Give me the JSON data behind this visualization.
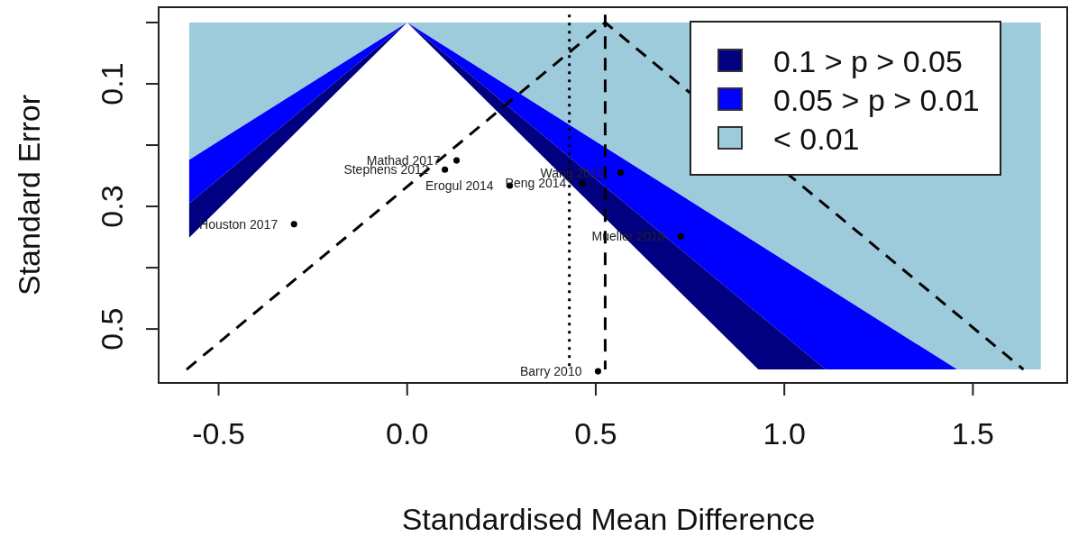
{
  "chart_data": {
    "type": "scatter",
    "xlabel": "Standardised Mean Difference",
    "ylabel": "Standard Error",
    "xlim": [
      -0.659,
      1.75
    ],
    "ylim": [
      0.588,
      -0.025
    ],
    "xticks": [
      -0.5,
      {
        "value": 0,
        "label": "0.0"
      },
      0.5,
      {
        "value": 1,
        "label": "1.0"
      },
      1.5
    ],
    "yticks": [
      {
        "value": 0,
        "label": null
      },
      0.1,
      {
        "value": 0.2,
        "label": null
      },
      0.3,
      {
        "value": 0.4,
        "label": null
      },
      0.5
    ],
    "legend": "top right",
    "series": [
      {
        "type": "area",
        "name": "< 0.01",
        "color": "#9ecbdb",
        "x": [
          -0.578,
          0,
          -0.578,
          null,
          0,
          1.68,
          1.68,
          1.458
        ],
        "values": [
          0,
          0,
          0.224,
          null,
          0,
          0,
          0.566,
          0.566
        ]
      },
      {
        "type": "area",
        "name": "0.05 > p > 0.01",
        "color": "#0000ff",
        "x": [
          0,
          -0.578,
          -0.578,
          null,
          0,
          1.458,
          1.109
        ],
        "values": [
          0,
          0.224,
          0.295,
          null,
          0,
          0.566,
          0.566
        ]
      },
      {
        "type": "area",
        "name": "0.1 > p > 0.05",
        "color": "#000080",
        "x": [
          0,
          -0.578,
          -0.578,
          null,
          0,
          1.109,
          0.931
        ],
        "values": [
          0,
          0.295,
          0.351,
          null,
          0,
          0.566,
          0.566
        ]
      },
      {
        "type": "line",
        "color": "#000000",
        "line_style": "dashed",
        "x": [
          -0.585,
          0.525,
          1.634
        ],
        "values": [
          0.566,
          0,
          0.566
        ]
      },
      {
        "color": "#000000",
        "marker": "circle",
        "x": [
          -0.3,
          0.131,
          0.1,
          0.272,
          0.465,
          0.566,
          0.726,
          0.506
        ],
        "values": [
          0.329,
          0.225,
          0.24,
          0.266,
          0.262,
          0.245,
          0.349,
          0.569
        ]
      }
    ],
    "ref_lines": [
      {
        "axis": "x",
        "value": 0.43,
        "line_style": "dotted",
        "color": "#000000"
      },
      {
        "axis": "x",
        "value": 0.525,
        "line_style": "dashed",
        "color": "#000000"
      }
    ],
    "annotations": [
      {
        "text": "Houston 2017",
        "x": -0.3,
        "y": 0.329
      },
      {
        "text": "Mathad 2017",
        "x": 0.131,
        "y": 0.225
      },
      {
        "text": "Stephens 2012",
        "x": 0.1,
        "y": 0.24
      },
      {
        "text": "Erogul 2014",
        "x": 0.272,
        "y": 0.266
      },
      {
        "text": "Peng 2014",
        "x": 0.465,
        "y": 0.262
      },
      {
        "text": "Wang 2012",
        "x": 0.566,
        "y": 0.245
      },
      {
        "text": "Mueller 2018",
        "x": 0.726,
        "y": 0.349
      },
      {
        "text": "Barry 2010",
        "x": 0.506,
        "y": 0.569
      }
    ]
  }
}
